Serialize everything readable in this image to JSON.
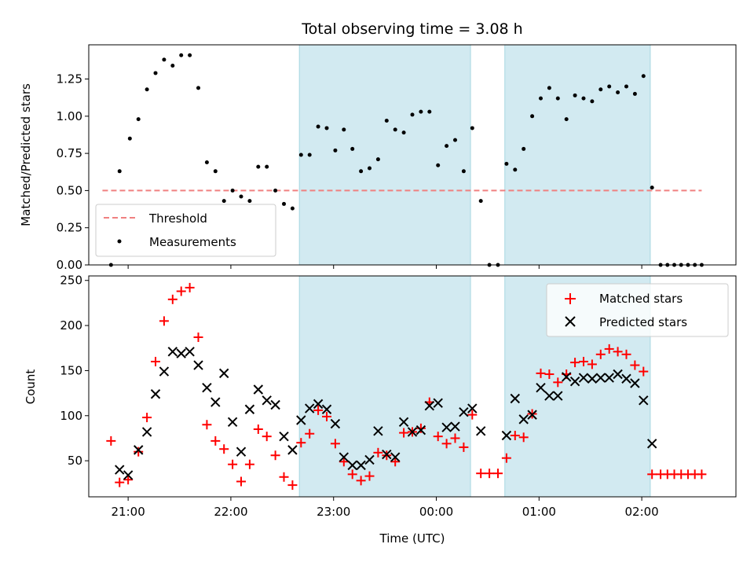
{
  "chart_data": [
    {
      "type": "scatter",
      "title": "Total observing time = 3.08 h",
      "ylabel": "Matched/Predicted stars",
      "xlim": [
        "20:37",
        "02:55"
      ],
      "ylim": [
        0,
        1.48
      ],
      "yticks": [
        "0.00",
        "0.25",
        "0.50",
        "0.75",
        "1.00",
        "1.25"
      ],
      "ytick_values": [
        0,
        0.25,
        0.5,
        0.75,
        1.0,
        1.25
      ],
      "xticks_values": [
        "21:00",
        "22:00",
        "23:00",
        "00:00",
        "01:00",
        "02:00"
      ],
      "shaded_intervals": [
        [
          "22:40",
          "00:20"
        ],
        [
          "00:40",
          "02:05"
        ]
      ],
      "shade_color": "#add8e6",
      "legend": {
        "position": "lower-left",
        "entries": [
          "Threshold",
          "Measurements"
        ]
      },
      "threshold": {
        "name": "Threshold",
        "value": 0.5,
        "x_range": [
          "20:45",
          "02:35"
        ],
        "color": "#f08080",
        "style": "dashed"
      },
      "series": [
        {
          "name": "Measurements",
          "color": "#000000",
          "points": [
            [
              "20:50",
              0.0
            ],
            [
              "20:55",
              0.63
            ],
            [
              "21:01",
              0.85
            ],
            [
              "21:06",
              0.98
            ],
            [
              "21:11",
              1.18
            ],
            [
              "21:16",
              1.29
            ],
            [
              "21:21",
              1.38
            ],
            [
              "21:26",
              1.34
            ],
            [
              "21:31",
              1.41
            ],
            [
              "21:36",
              1.41
            ],
            [
              "21:41",
              1.19
            ],
            [
              "21:46",
              0.69
            ],
            [
              "21:51",
              0.63
            ],
            [
              "21:56",
              0.43
            ],
            [
              "22:01",
              0.5
            ],
            [
              "22:06",
              0.46
            ],
            [
              "22:11",
              0.43
            ],
            [
              "22:16",
              0.66
            ],
            [
              "22:21",
              0.66
            ],
            [
              "22:26",
              0.5
            ],
            [
              "22:31",
              0.41
            ],
            [
              "22:36",
              0.38
            ],
            [
              "22:41",
              0.74
            ],
            [
              "22:46",
              0.74
            ],
            [
              "22:51",
              0.93
            ],
            [
              "22:56",
              0.92
            ],
            [
              "23:01",
              0.77
            ],
            [
              "23:06",
              0.91
            ],
            [
              "23:11",
              0.78
            ],
            [
              "23:16",
              0.63
            ],
            [
              "23:21",
              0.65
            ],
            [
              "23:26",
              0.71
            ],
            [
              "23:31",
              0.97
            ],
            [
              "23:36",
              0.91
            ],
            [
              "23:41",
              0.89
            ],
            [
              "23:46",
              1.01
            ],
            [
              "23:51",
              1.03
            ],
            [
              "23:56",
              1.03
            ],
            [
              "00:01",
              0.67
            ],
            [
              "00:06",
              0.8
            ],
            [
              "00:11",
              0.84
            ],
            [
              "00:16",
              0.63
            ],
            [
              "00:21",
              0.92
            ],
            [
              "00:26",
              0.43
            ],
            [
              "00:31",
              0.0
            ],
            [
              "00:36",
              0.0
            ],
            [
              "00:41",
              0.68
            ],
            [
              "00:46",
              0.64
            ],
            [
              "00:51",
              0.78
            ],
            [
              "00:56",
              1.0
            ],
            [
              "01:01",
              1.12
            ],
            [
              "01:06",
              1.19
            ],
            [
              "01:11",
              1.12
            ],
            [
              "01:16",
              0.98
            ],
            [
              "01:21",
              1.14
            ],
            [
              "01:26",
              1.12
            ],
            [
              "01:31",
              1.1
            ],
            [
              "01:36",
              1.18
            ],
            [
              "01:41",
              1.2
            ],
            [
              "01:46",
              1.16
            ],
            [
              "01:51",
              1.2
            ],
            [
              "01:56",
              1.15
            ],
            [
              "02:01",
              1.27
            ],
            [
              "02:06",
              0.52
            ],
            [
              "02:11",
              0.0
            ],
            [
              "02:15",
              0.0
            ],
            [
              "02:19",
              0.0
            ],
            [
              "02:23",
              0.0
            ],
            [
              "02:27",
              0.0
            ],
            [
              "02:31",
              0.0
            ],
            [
              "02:35",
              0.0
            ]
          ]
        }
      ]
    },
    {
      "type": "scatter",
      "xlabel": "Time (UTC)",
      "ylabel": "Count",
      "xlim": [
        "20:37",
        "02:55"
      ],
      "ylim": [
        10,
        255
      ],
      "yticks": [
        "50",
        "100",
        "150",
        "200",
        "250"
      ],
      "ytick_values": [
        50,
        100,
        150,
        200,
        250
      ],
      "xticks": [
        "21:00",
        "22:00",
        "23:00",
        "00:00",
        "01:00",
        "02:00"
      ],
      "shaded_intervals": [
        [
          "22:40",
          "00:20"
        ],
        [
          "00:40",
          "02:05"
        ]
      ],
      "shade_color": "#add8e6",
      "legend": {
        "position": "top-right",
        "entries": [
          "Matched stars",
          "Predicted stars"
        ]
      },
      "series": [
        {
          "name": "Matched stars",
          "marker": "+",
          "color": "#ff0000",
          "points": [
            [
              "20:50",
              72
            ],
            [
              "20:55",
              26
            ],
            [
              "21:00",
              29
            ],
            [
              "21:06",
              60
            ],
            [
              "21:11",
              98
            ],
            [
              "21:16",
              160
            ],
            [
              "21:21",
              205
            ],
            [
              "21:26",
              229
            ],
            [
              "21:31",
              238
            ],
            [
              "21:36",
              242
            ],
            [
              "21:41",
              187
            ],
            [
              "21:46",
              90
            ],
            [
              "21:51",
              72
            ],
            [
              "21:56",
              63
            ],
            [
              "22:01",
              46
            ],
            [
              "22:06",
              27
            ],
            [
              "22:11",
              46
            ],
            [
              "22:16",
              85
            ],
            [
              "22:21",
              77
            ],
            [
              "22:26",
              56
            ],
            [
              "22:31",
              32
            ],
            [
              "22:36",
              23
            ],
            [
              "22:41",
              70
            ],
            [
              "22:46",
              80
            ],
            [
              "22:51",
              106
            ],
            [
              "22:56",
              99
            ],
            [
              "23:01",
              69
            ],
            [
              "23:06",
              49
            ],
            [
              "23:11",
              35
            ],
            [
              "23:16",
              28
            ],
            [
              "23:21",
              33
            ],
            [
              "23:26",
              59
            ],
            [
              "23:31",
              56
            ],
            [
              "23:36",
              49
            ],
            [
              "23:41",
              81
            ],
            [
              "23:46",
              82
            ],
            [
              "23:51",
              86
            ],
            [
              "23:56",
              115
            ],
            [
              "00:01",
              77
            ],
            [
              "00:06",
              69
            ],
            [
              "00:11",
              75
            ],
            [
              "00:16",
              65
            ],
            [
              "00:21",
              101
            ],
            [
              "00:26",
              36
            ],
            [
              "00:31",
              36
            ],
            [
              "00:36",
              36
            ],
            [
              "00:41",
              53
            ],
            [
              "00:46",
              78
            ],
            [
              "00:51",
              76
            ],
            [
              "00:56",
              102
            ],
            [
              "01:01",
              147
            ],
            [
              "01:06",
              146
            ],
            [
              "01:11",
              137
            ],
            [
              "01:16",
              146
            ],
            [
              "01:21",
              159
            ],
            [
              "01:26",
              160
            ],
            [
              "01:31",
              157
            ],
            [
              "01:36",
              168
            ],
            [
              "01:41",
              174
            ],
            [
              "01:46",
              171
            ],
            [
              "01:51",
              168
            ],
            [
              "01:56",
              156
            ],
            [
              "02:01",
              149
            ],
            [
              "02:06",
              35
            ],
            [
              "02:11",
              35
            ],
            [
              "02:15",
              35
            ],
            [
              "02:19",
              35
            ],
            [
              "02:23",
              35
            ],
            [
              "02:27",
              35
            ],
            [
              "02:31",
              35
            ],
            [
              "02:35",
              35
            ]
          ]
        },
        {
          "name": "Predicted stars",
          "marker": "x",
          "color": "#000000",
          "points": [
            [
              "20:55",
              40
            ],
            [
              "21:00",
              34
            ],
            [
              "21:06",
              62
            ],
            [
              "21:11",
              82
            ],
            [
              "21:16",
              124
            ],
            [
              "21:21",
              149
            ],
            [
              "21:26",
              171
            ],
            [
              "21:31",
              169
            ],
            [
              "21:36",
              171
            ],
            [
              "21:41",
              156
            ],
            [
              "21:46",
              131
            ],
            [
              "21:51",
              115
            ],
            [
              "21:56",
              147
            ],
            [
              "22:01",
              93
            ],
            [
              "22:06",
              60
            ],
            [
              "22:11",
              107
            ],
            [
              "22:16",
              129
            ],
            [
              "22:21",
              117
            ],
            [
              "22:26",
              112
            ],
            [
              "22:31",
              77
            ],
            [
              "22:36",
              62
            ],
            [
              "22:41",
              95
            ],
            [
              "22:46",
              108
            ],
            [
              "22:51",
              113
            ],
            [
              "22:56",
              107
            ],
            [
              "23:01",
              91
            ],
            [
              "23:06",
              54
            ],
            [
              "23:11",
              45
            ],
            [
              "23:16",
              45
            ],
            [
              "23:21",
              51
            ],
            [
              "23:26",
              83
            ],
            [
              "23:31",
              57
            ],
            [
              "23:36",
              54
            ],
            [
              "23:41",
              93
            ],
            [
              "23:46",
              82
            ],
            [
              "23:51",
              84
            ],
            [
              "23:56",
              111
            ],
            [
              "00:01",
              114
            ],
            [
              "00:06",
              87
            ],
            [
              "00:11",
              88
            ],
            [
              "00:16",
              104
            ],
            [
              "00:21",
              108
            ],
            [
              "00:26",
              83
            ],
            [
              "00:41",
              78
            ],
            [
              "00:46",
              119
            ],
            [
              "00:51",
              96
            ],
            [
              "00:56",
              101
            ],
            [
              "01:01",
              131
            ],
            [
              "01:06",
              122
            ],
            [
              "01:11",
              122
            ],
            [
              "01:16",
              143
            ],
            [
              "01:21",
              138
            ],
            [
              "01:26",
              142
            ],
            [
              "01:31",
              141
            ],
            [
              "01:36",
              142
            ],
            [
              "01:41",
              142
            ],
            [
              "01:46",
              146
            ],
            [
              "01:51",
              141
            ],
            [
              "01:56",
              136
            ],
            [
              "02:01",
              117
            ],
            [
              "02:06",
              69
            ]
          ]
        }
      ]
    }
  ]
}
